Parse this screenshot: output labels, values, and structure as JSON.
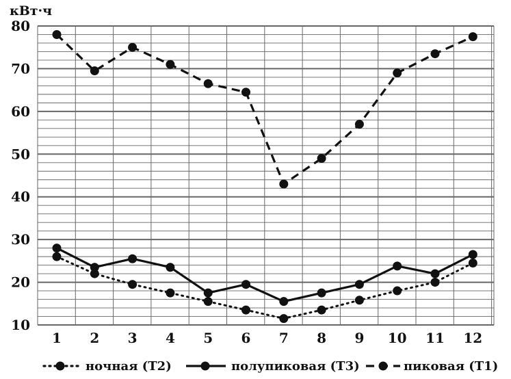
{
  "chart_data": {
    "type": "line",
    "title": "",
    "xlabel": "",
    "ylabel": "кВт·ч",
    "x": [
      "1",
      "2",
      "3",
      "4",
      "5",
      "6",
      "7",
      "8",
      "9",
      "10",
      "11",
      "12"
    ],
    "ylim": [
      10,
      80
    ],
    "yticks": [
      "10",
      "20",
      "30",
      "40",
      "50",
      "60",
      "70",
      "80"
    ],
    "grid": true,
    "legend_position": "bottom",
    "series": [
      {
        "name": "ночная (Т2)",
        "style": "dotted",
        "values": [
          26,
          22,
          19.5,
          17.5,
          15.5,
          13.5,
          11.5,
          13.5,
          15.8,
          18,
          20,
          24.5
        ]
      },
      {
        "name": "полупиковая (Т3)",
        "style": "solid",
        "values": [
          28,
          23.5,
          25.5,
          23.5,
          17.5,
          19.5,
          15.5,
          17.5,
          19.5,
          23.8,
          22,
          26.5
        ]
      },
      {
        "name": "пиковая (Т1)",
        "style": "dashed",
        "values": [
          78,
          69.5,
          75,
          71,
          66.5,
          64.5,
          43,
          49,
          57,
          69,
          73.5,
          77.5
        ]
      }
    ],
    "colors": {
      "line": "#111111",
      "grid": "#666666"
    }
  }
}
